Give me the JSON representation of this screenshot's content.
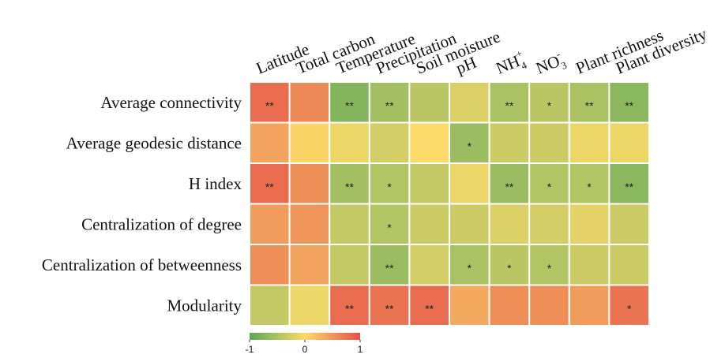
{
  "chart_data": {
    "type": "heatmap",
    "title": "",
    "columns": [
      "Latitude",
      "Total carbon",
      "Temperature",
      "Precipitation",
      "Soil moisture",
      "pH",
      "NH",
      "NO",
      "Plant richness",
      "Plant diversity"
    ],
    "column_sub": [
      "",
      "",
      "",
      "",
      "",
      "",
      "4",
      "3",
      "",
      ""
    ],
    "column_sup": [
      "",
      "",
      "",
      "",
      "",
      "",
      "+",
      "-",
      "",
      ""
    ],
    "rows": [
      "Average connectivity",
      "Average geodesic distance",
      "H index",
      "Centralization of degree",
      "Centralization of betweenness",
      "Modularity"
    ],
    "values": [
      [
        0.8,
        0.6,
        -0.75,
        -0.55,
        -0.4,
        -0.2,
        -0.5,
        -0.4,
        -0.5,
        -0.7
      ],
      [
        0.4,
        0.05,
        -0.1,
        -0.25,
        0.0,
        -0.6,
        -0.3,
        -0.3,
        -0.1,
        -0.1
      ],
      [
        0.8,
        0.55,
        -0.55,
        -0.45,
        -0.35,
        -0.1,
        -0.6,
        -0.45,
        -0.45,
        -0.7
      ],
      [
        0.45,
        0.5,
        -0.35,
        -0.45,
        -0.3,
        -0.3,
        -0.2,
        -0.25,
        -0.15,
        -0.3
      ],
      [
        0.55,
        0.4,
        -0.35,
        -0.6,
        -0.25,
        -0.5,
        -0.4,
        -0.45,
        -0.3,
        -0.3
      ],
      [
        -0.35,
        -0.1,
        0.8,
        0.75,
        0.8,
        0.35,
        0.55,
        0.55,
        0.45,
        0.75
      ]
    ],
    "significance": [
      [
        "**",
        "",
        "**",
        "**",
        "",
        "",
        "**",
        "*",
        "**",
        "**"
      ],
      [
        "",
        "",
        "",
        "",
        "",
        "*",
        "",
        "",
        "",
        ""
      ],
      [
        "**",
        "",
        "**",
        "*",
        "",
        "",
        "**",
        "*",
        "*",
        "**"
      ],
      [
        "",
        "",
        "",
        "*",
        "",
        "",
        "",
        "",
        "",
        ""
      ],
      [
        "",
        "",
        "",
        "**",
        "",
        "*",
        "*",
        "*",
        "",
        ""
      ],
      [
        "",
        "",
        "**",
        "**",
        "**",
        "",
        "",
        "",
        "",
        "*"
      ]
    ],
    "color_scale": {
      "min": -1,
      "mid": 0,
      "max": 1,
      "colors": [
        "#5aa85a",
        "#fcdb6a",
        "#e3504a"
      ],
      "ticks": [
        "-1",
        "0",
        "1"
      ]
    }
  }
}
